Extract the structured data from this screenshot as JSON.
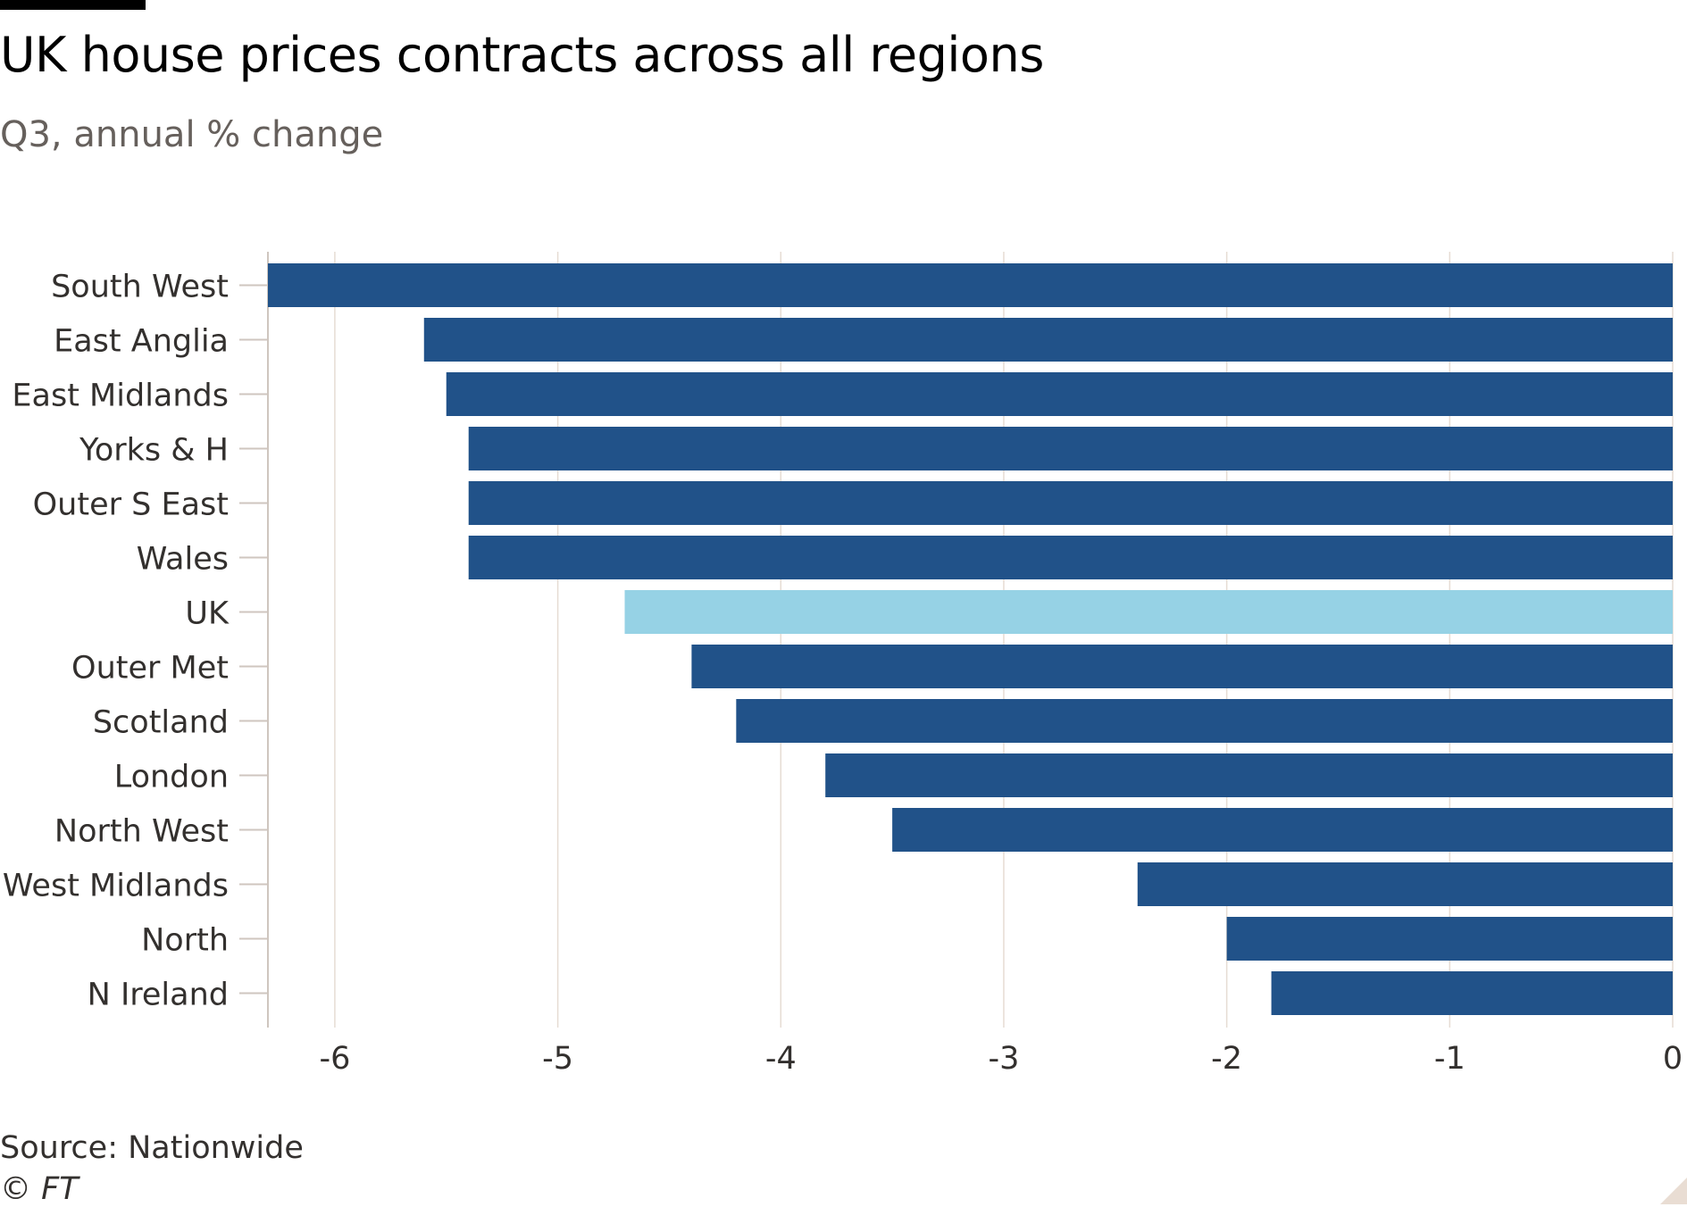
{
  "header": {
    "title": "UK house prices contracts across all regions",
    "subtitle": "Q3, annual % change"
  },
  "footer": {
    "source": "Source: Nationwide",
    "copyright": "© FT"
  },
  "colors": {
    "bar": "#215289",
    "highlight": "#96d2e5",
    "grid": "#e6dcd4",
    "text": "#33302e"
  },
  "chart_data": {
    "type": "bar",
    "orientation": "horizontal",
    "title": "UK house prices contracts across all regions",
    "subtitle": "Q3, annual % change",
    "xlabel": "",
    "ylabel": "",
    "xlim": [
      -6.3,
      0
    ],
    "xticks": [
      -6,
      -5,
      -4,
      -3,
      -2,
      -1,
      0
    ],
    "grid": true,
    "highlight_category": "UK",
    "categories": [
      "South West",
      "East Anglia",
      "East Midlands",
      "Yorks & H",
      "Outer S East",
      "Wales",
      "UK",
      "Outer Met",
      "Scotland",
      "London",
      "North West",
      "West Midlands",
      "North",
      "N Ireland"
    ],
    "values": [
      -6.3,
      -5.6,
      -5.5,
      -5.4,
      -5.4,
      -5.4,
      -4.7,
      -4.4,
      -4.2,
      -3.8,
      -3.5,
      -2.4,
      -2.0,
      -1.8
    ]
  }
}
